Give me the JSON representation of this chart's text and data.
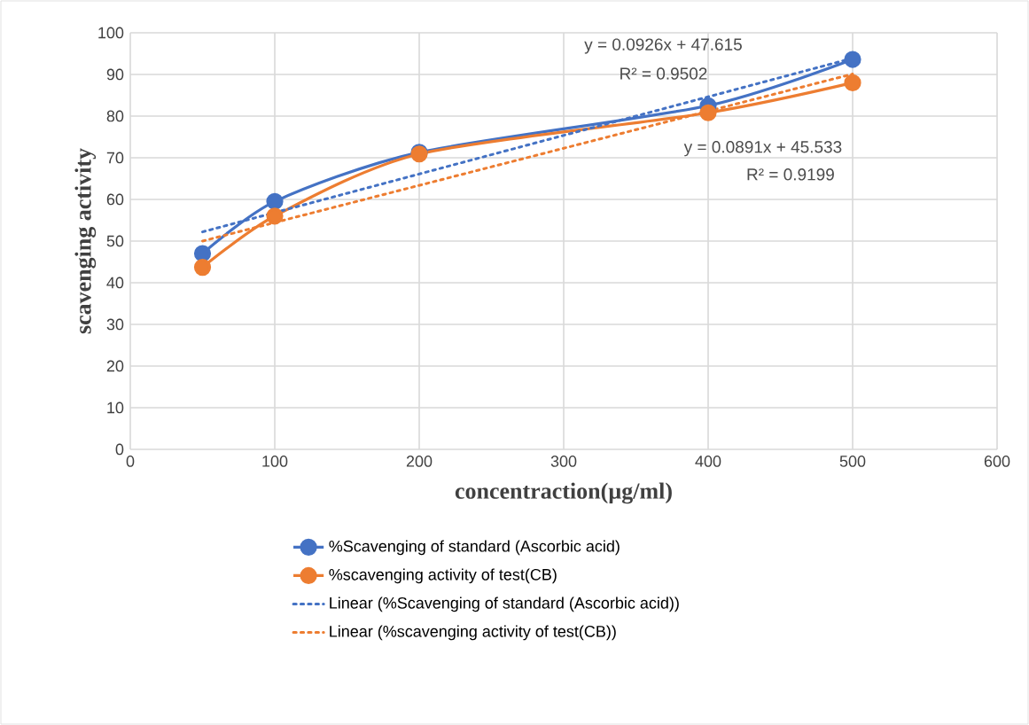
{
  "chart_data": {
    "type": "line",
    "xlabel": "**concentraction(µg/ml**)",
    "ylabel": "scavenging activity",
    "series": [
      {
        "name": "%Scavenging of standard (Ascorbic acid)",
        "color": "#4472c4",
        "x": [
          50,
          100,
          200,
          400,
          500
        ],
        "values": [
          47,
          59.5,
          71.3,
          82.5,
          93.6
        ],
        "marker": "circle",
        "line_style": "solid"
      },
      {
        "name": "%scavenging activity of test(CB)",
        "color": "#ed7d31",
        "x": [
          50,
          100,
          200,
          400,
          500
        ],
        "values": [
          43.7,
          56,
          70.9,
          80.8,
          88
        ],
        "marker": "circle",
        "line_style": "solid"
      },
      {
        "name": "Linear (%Scavenging of standard (Ascorbic acid))",
        "color": "#4472c4",
        "x": [
          50,
          500
        ],
        "values": [
          52.2,
          93.9
        ],
        "marker": "none",
        "line_style": "dotted"
      },
      {
        "name": "Linear (%scavenging activity of test(CB))",
        "color": "#ed7d31",
        "x": [
          50,
          500
        ],
        "values": [
          50.0,
          90.1
        ],
        "marker": "none",
        "line_style": "dotted"
      }
    ],
    "annotations": [
      "y = 0.0926x + 47.615",
      "R² = 0.9502",
      "y = 0.0891x + 45.533",
      "R² = 0.9199"
    ],
    "xlim": [
      0,
      600
    ],
    "xticks": [
      0,
      100,
      200,
      300,
      400,
      500,
      600
    ],
    "ylim": [
      0,
      100
    ],
    "yticks": [
      0,
      10,
      20,
      30,
      40,
      50,
      60,
      70,
      80,
      90,
      100
    ],
    "grid": true,
    "legend": "bottom"
  }
}
